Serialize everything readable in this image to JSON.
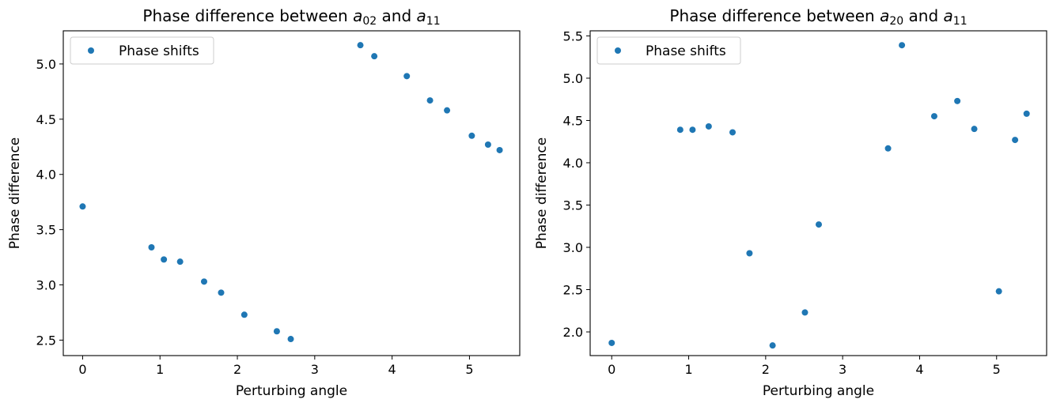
{
  "chart_data": [
    {
      "type": "scatter",
      "title": {
        "prefix": "Phase difference between ",
        "var1": "a",
        "sub1": "02",
        "mid": " and ",
        "var2": "a",
        "sub2": "11"
      },
      "xlabel": "Perturbing angle",
      "ylabel": "Phase difference",
      "xlim": [
        -0.25,
        5.65
      ],
      "ylim": [
        2.36,
        5.3
      ],
      "xticks": [
        0,
        1,
        2,
        3,
        4,
        5
      ],
      "yticks": [
        2.5,
        3.0,
        3.5,
        4.0,
        4.5,
        5.0
      ],
      "ytick_labels": [
        "2.5",
        "3.0",
        "3.5",
        "4.0",
        "4.5",
        "5.0"
      ],
      "legend_position": "top-left",
      "grid": false,
      "series": [
        {
          "name": "Phase shifts",
          "color": "#1f77b4",
          "x": [
            0.0,
            0.89,
            1.05,
            1.26,
            1.57,
            1.79,
            2.09,
            2.51,
            2.69,
            3.59,
            3.77,
            4.19,
            4.49,
            4.71,
            5.03,
            5.24,
            5.39
          ],
          "y": [
            3.71,
            3.34,
            3.23,
            3.21,
            3.03,
            2.93,
            2.73,
            2.58,
            2.51,
            5.17,
            5.07,
            4.89,
            4.67,
            4.58,
            4.35,
            4.27,
            4.22
          ]
        }
      ]
    },
    {
      "type": "scatter",
      "title": {
        "prefix": "Phase difference between ",
        "var1": "a",
        "sub1": "20",
        "mid": " and ",
        "var2": "a",
        "sub2": "11"
      },
      "xlabel": "Perturbing angle",
      "ylabel": "Phase difference",
      "xlim": [
        -0.28,
        5.65
      ],
      "ylim": [
        1.72,
        5.56
      ],
      "xticks": [
        0,
        1,
        2,
        3,
        4,
        5
      ],
      "yticks": [
        2.0,
        2.5,
        3.0,
        3.5,
        4.0,
        4.5,
        5.0,
        5.5
      ],
      "ytick_labels": [
        "2.0",
        "2.5",
        "3.0",
        "3.5",
        "4.0",
        "4.5",
        "5.0",
        "5.5"
      ],
      "legend_position": "top-left",
      "grid": false,
      "series": [
        {
          "name": "Phase shifts",
          "color": "#1f77b4",
          "x": [
            0.0,
            0.89,
            1.05,
            1.26,
            1.57,
            1.79,
            2.09,
            2.51,
            2.69,
            3.59,
            3.77,
            4.19,
            4.49,
            4.71,
            5.03,
            5.24,
            5.39
          ],
          "y": [
            1.87,
            4.39,
            4.39,
            4.43,
            4.36,
            2.93,
            1.84,
            2.23,
            3.27,
            4.17,
            5.39,
            4.55,
            4.73,
            4.4,
            2.48,
            4.27,
            4.58
          ]
        }
      ]
    }
  ]
}
